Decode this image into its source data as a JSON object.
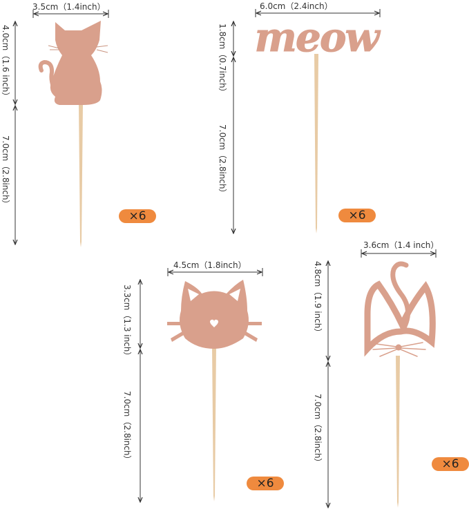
{
  "colors": {
    "topper": "#d9a08c",
    "stick": "#e8cba5",
    "badge": "#ef8a3e",
    "dimension_line": "#333333"
  },
  "toppers": [
    {
      "name": "sitting-cat",
      "width_label": "3.5cm（1.4inch）",
      "topper_height_label": "4.0cm（1.6 inch）",
      "stick_label": "7.0cm（2.8inch）",
      "quantity": "×6"
    },
    {
      "name": "meow",
      "shape_text": "meow",
      "width_label": "6.0cm（2.4inch）",
      "topper_height_label": "1.8cm（0.7inch）",
      "stick_label": "7.0cm（2.8inch）",
      "quantity": "×6"
    },
    {
      "name": "cat-face",
      "width_label": "4.5cm（1.8inch）",
      "topper_height_label": "3.3cm（1.3 inch）",
      "stick_label": "7.0cm（2.8inch）",
      "quantity": "×6"
    },
    {
      "name": "cat-ears-tail",
      "width_label": "3.6cm（1.4 inch）",
      "topper_height_label": "4.8cm（1.9 inch）",
      "stick_label": "7.0cm（2.8inch）",
      "quantity": "×6"
    }
  ]
}
